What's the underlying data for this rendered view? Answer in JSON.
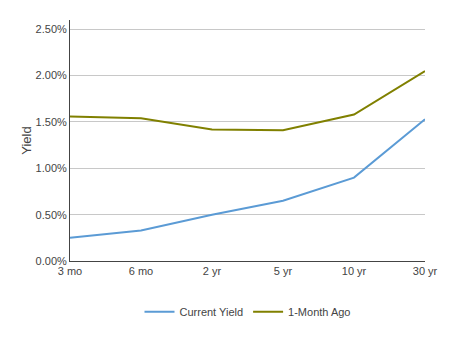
{
  "chart_data": {
    "type": "line",
    "categories": [
      "3 mo",
      "6 mo",
      "2 yr",
      "5 yr",
      "10 yr",
      "30 yr"
    ],
    "series": [
      {
        "name": "Current Yield",
        "color": "#5B9BD5",
        "values": [
          0.0025,
          0.0033,
          0.005,
          0.0065,
          0.009,
          0.0153
        ]
      },
      {
        "name": "1-Month Ago",
        "color": "#808000",
        "values": [
          0.0156,
          0.0154,
          0.0142,
          0.0141,
          0.0158,
          0.0205
        ]
      }
    ],
    "ylabel": "Yield",
    "ylim": [
      0.0,
      0.026
    ],
    "yticks": [
      {
        "value": 0.0,
        "label": "0.00%"
      },
      {
        "value": 0.005,
        "label": "0.50%"
      },
      {
        "value": 0.01,
        "label": "1.00%"
      },
      {
        "value": 0.015,
        "label": "1.50%"
      },
      {
        "value": 0.02,
        "label": "2.00%"
      },
      {
        "value": 0.025,
        "label": "2.50%"
      }
    ],
    "grid": true,
    "legend": "bottom"
  }
}
